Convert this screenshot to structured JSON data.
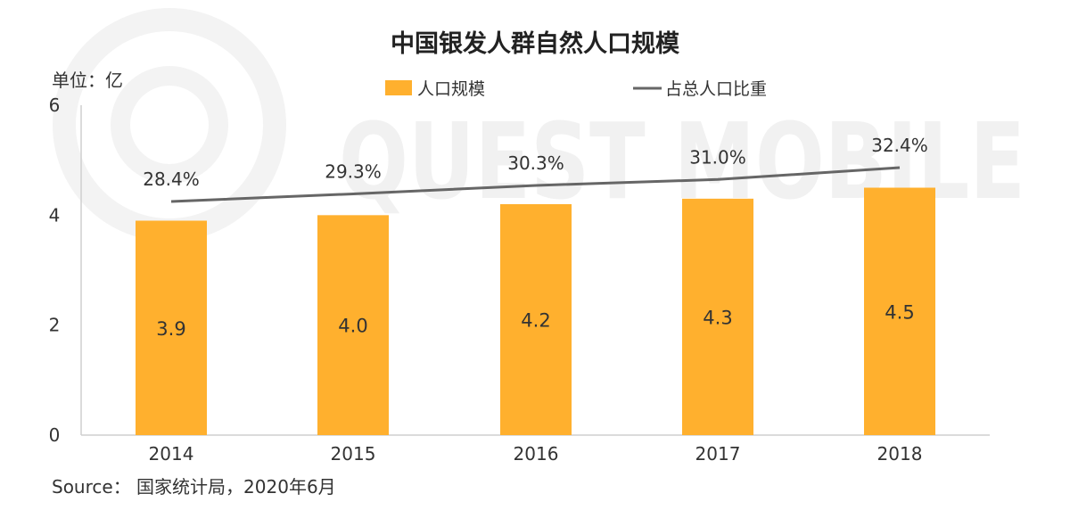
{
  "chart_data": {
    "type": "bar+line",
    "title": "中国银发人群自然人口规模",
    "unit_label": "单位：亿",
    "categories": [
      "2014",
      "2015",
      "2016",
      "2017",
      "2018"
    ],
    "series": [
      {
        "name": "人口规模",
        "type": "bar",
        "values": [
          3.9,
          4.0,
          4.2,
          4.3,
          4.5
        ],
        "labels": [
          "3.9",
          "4.0",
          "4.2",
          "4.3",
          "4.5"
        ],
        "color": "#ffb02e"
      },
      {
        "name": "占总人口比重",
        "type": "line",
        "values": [
          28.4,
          29.3,
          30.3,
          31.0,
          32.4
        ],
        "labels": [
          "28.4%",
          "29.3%",
          "30.3%",
          "31.0%",
          "32.4%"
        ],
        "color": "#666666"
      }
    ],
    "y_ticks": [
      "0",
      "2",
      "4",
      "6"
    ],
    "ylim": [
      0,
      6
    ],
    "legend_position": "top-center",
    "grid": false
  },
  "source": "Source： 国家统计局，2020年6月",
  "watermark": "QUEST MOBILE"
}
